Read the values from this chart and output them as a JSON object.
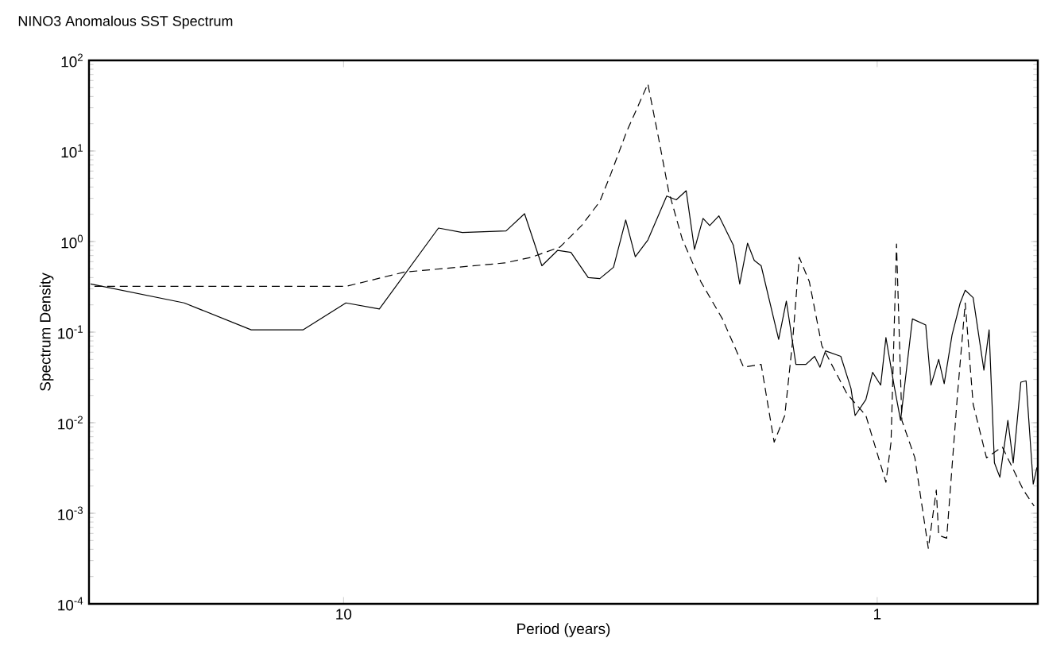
{
  "chart_data": {
    "type": "line",
    "title": "NINO3 Anomalous SST Spectrum",
    "xlabel": "Period (years)",
    "ylabel": "Spectrum Density",
    "log": "xy",
    "grid": false,
    "marker": "none",
    "xlim": [
      30,
      0.5
    ],
    "ylim": [
      0.0001,
      100
    ],
    "xticks": [
      10,
      1
    ],
    "yticks": [
      {
        "value": 0.0001,
        "label": "10$^{-4}$"
      },
      {
        "value": 0.001,
        "label": "10$^{-3}$"
      },
      {
        "value": 0.01,
        "label": "10$^{-2}$"
      },
      {
        "value": 0.1,
        "label": "10$^{-1}$"
      },
      {
        "value": 1,
        "label": "10$^{0}$"
      },
      {
        "value": 10,
        "label": "10$^{1}$"
      },
      {
        "value": 100,
        "label": "10$^{2}$"
      }
    ],
    "series": [
      {
        "color": "#000000",
        "line_style": "solid",
        "x": [
          29.8,
          19.9,
          14.9,
          11.9,
          9.9,
          8.57,
          6.64,
          5.99,
          4.96,
          4.58,
          4.25,
          3.97,
          3.75,
          3.48,
          3.31,
          3.12,
          2.96,
          2.84,
          2.69,
          2.48,
          2.38,
          2.28,
          2.2,
          2.12,
          2.06,
          1.98,
          1.86,
          1.81,
          1.75,
          1.7,
          1.65,
          1.53,
          1.48,
          1.42,
          1.36,
          1.31,
          1.28,
          1.25,
          1.17,
          1.12,
          1.1,
          1.05,
          1.02,
          0.985,
          0.963,
          0.93,
          0.904,
          0.859,
          0.811,
          0.793,
          0.767,
          0.749,
          0.724,
          0.699,
          0.684,
          0.661,
          0.631,
          0.617,
          0.603,
          0.589,
          0.569,
          0.556,
          0.538,
          0.526,
          0.51,
          0.502
        ],
        "values": [
          0.34,
          0.21,
          0.106,
          0.106,
          0.21,
          0.18,
          1.41,
          1.26,
          1.31,
          2.03,
          0.54,
          0.8,
          0.76,
          0.4,
          0.39,
          0.52,
          1.73,
          0.68,
          1.04,
          3.18,
          2.89,
          3.64,
          0.82,
          1.8,
          1.5,
          1.92,
          0.91,
          0.34,
          0.96,
          0.62,
          0.54,
          0.083,
          0.22,
          0.044,
          0.044,
          0.054,
          0.041,
          0.062,
          0.054,
          0.024,
          0.012,
          0.018,
          0.036,
          0.026,
          0.087,
          0.026,
          0.0106,
          0.14,
          0.12,
          0.026,
          0.05,
          0.027,
          0.093,
          0.21,
          0.29,
          0.24,
          0.038,
          0.106,
          0.0036,
          0.0025,
          0.0106,
          0.0036,
          0.028,
          0.029,
          0.0021,
          0.0032
        ]
      },
      {
        "color": "#000000",
        "line_style": "dashed",
        "x": [
          29.3,
          9.9,
          7.69,
          4.99,
          4.45,
          3.93,
          3.58,
          3.31,
          3.16,
          2.95,
          2.69,
          2.57,
          2.46,
          2.32,
          2.14,
          1.95,
          1.78,
          1.65,
          1.56,
          1.49,
          1.44,
          1.4,
          1.34,
          1.27,
          1.14,
          1.05,
          0.963,
          0.942,
          0.92,
          0.899,
          0.85,
          0.802,
          0.775,
          0.767,
          0.741,
          0.707,
          0.684,
          0.661,
          0.624,
          0.583,
          0.532,
          0.508
        ],
        "values": [
          0.32,
          0.32,
          0.46,
          0.58,
          0.67,
          0.87,
          1.5,
          2.77,
          5.47,
          16.2,
          55,
          14.1,
          3.64,
          1.07,
          0.36,
          0.14,
          0.041,
          0.044,
          0.0061,
          0.012,
          0.081,
          0.67,
          0.36,
          0.071,
          0.021,
          0.012,
          0.0022,
          0.0061,
          0.94,
          0.0106,
          0.0041,
          0.00041,
          0.0018,
          0.00057,
          0.00053,
          0.021,
          0.21,
          0.016,
          0.0041,
          0.0054,
          0.0018,
          0.0012
        ]
      }
    ]
  }
}
